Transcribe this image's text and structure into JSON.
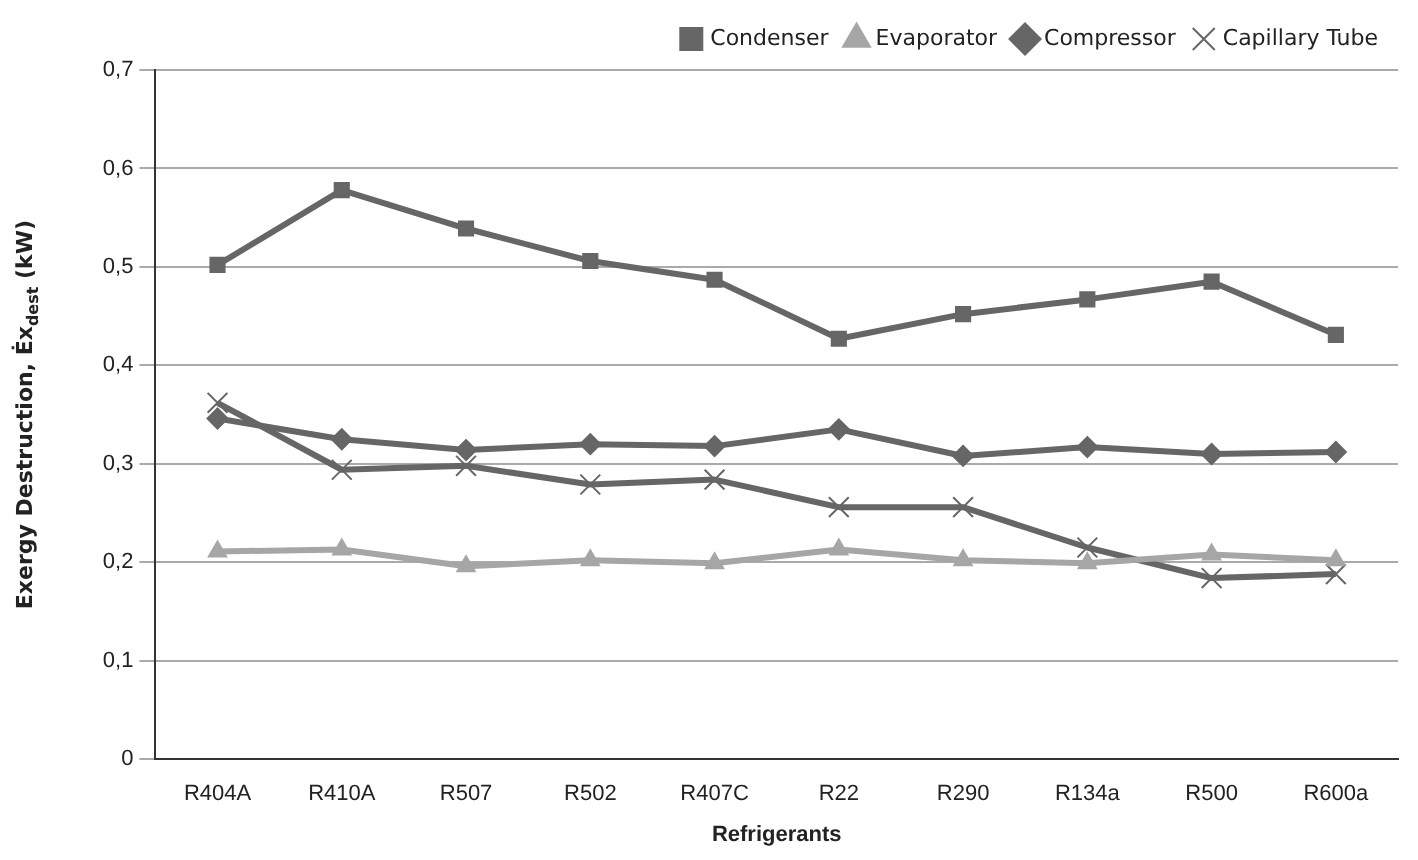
{
  "chart_data": {
    "type": "line",
    "xlabel": "Refrigerants",
    "ylabel": "Exergy Destruction, Ėx$_{dest}$ (kW)",
    "categories": [
      "R404A",
      "R410A",
      "R507",
      "R502",
      "R407C",
      "R22",
      "R290",
      "R134a",
      "R500",
      "R600a"
    ],
    "ylim": [
      0,
      0.7
    ],
    "yticks": [
      0,
      {
        "value": 0.1,
        "label": "0,1"
      },
      {
        "value": 0.2,
        "label": "0,2"
      },
      {
        "value": 0.3,
        "label": "0,3"
      },
      {
        "value": 0.4,
        "label": "0,4"
      },
      {
        "value": 0.5,
        "label": "0,5"
      },
      {
        "value": 0.6,
        "label": "0,6"
      },
      {
        "value": 0.7,
        "label": "0,7"
      }
    ],
    "grid": "y",
    "legend": "top right",
    "line_style": "solid",
    "series": [
      {
        "name": "Condenser",
        "color": "#666666",
        "marker": "square",
        "values": [
          0.502,
          0.578,
          0.539,
          0.506,
          0.487,
          0.427,
          0.452,
          0.467,
          0.485,
          0.431
        ]
      },
      {
        "name": "Evaporator",
        "color": "#a6a6a6",
        "marker": "triangle",
        "values": [
          0.211,
          0.213,
          0.196,
          0.202,
          0.199,
          0.213,
          0.202,
          0.199,
          0.208,
          0.202
        ]
      },
      {
        "name": "Compressor",
        "color": "#666666",
        "marker": "diamond",
        "values": [
          0.346,
          0.325,
          0.314,
          0.32,
          0.318,
          0.335,
          0.308,
          0.317,
          0.31,
          0.312
        ]
      },
      {
        "name": "Capillary Tube",
        "color": "#666666",
        "marker": "cross",
        "values": [
          0.362,
          0.294,
          0.298,
          0.279,
          0.284,
          0.256,
          0.256,
          0.215,
          0.184,
          0.188
        ]
      }
    ]
  }
}
